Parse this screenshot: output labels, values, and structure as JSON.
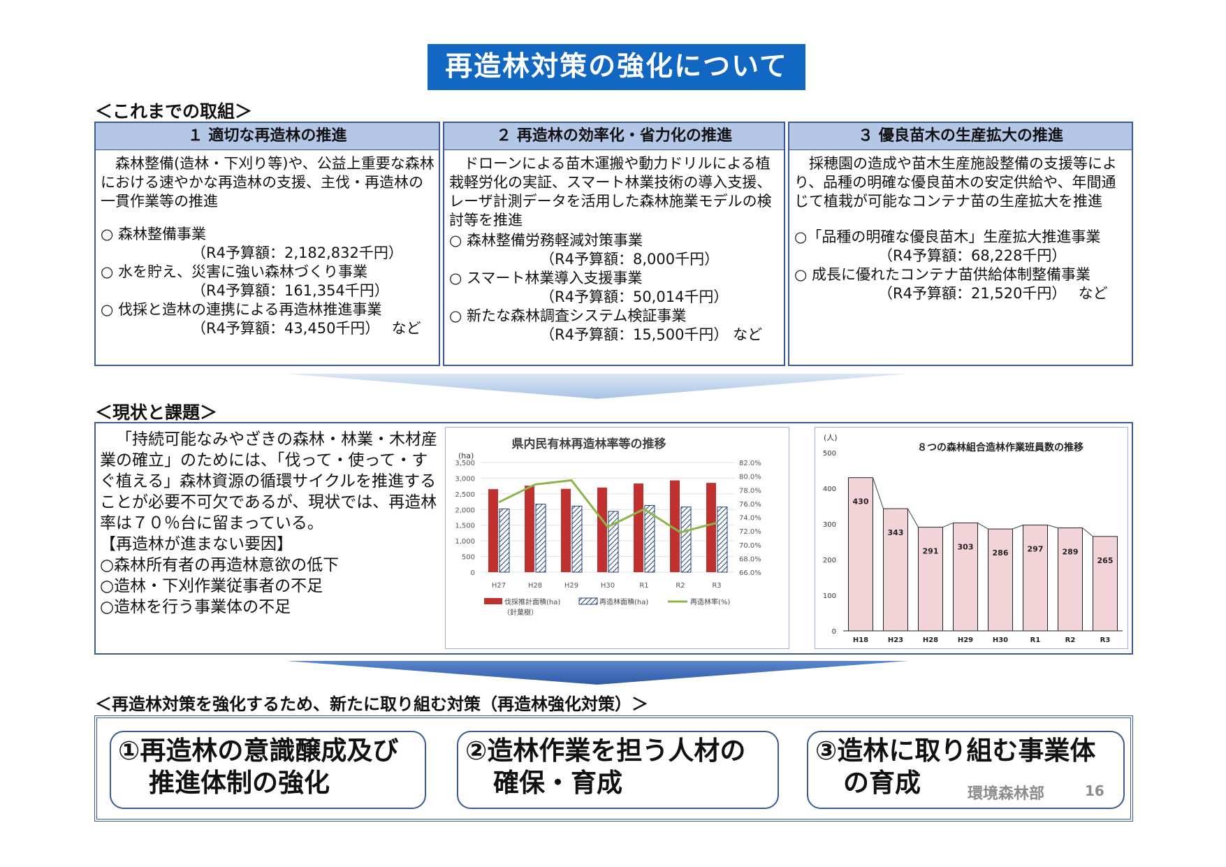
{
  "title": "再造林対策の強化について",
  "sections": {
    "past": "＜これまでの取組＞",
    "current": "＜現状と課題＞",
    "new": "＜再造林対策を強化するため、新たに取り組む対策（再造林強化対策）＞"
  },
  "panels": [
    {
      "heading": "１ 適切な再造林の推進",
      "intro": "森林整備(造林・下刈り等)や、公益上重要な森林における速やかな再造林の支援、主伐・再造林の一貫作業等の推進",
      "items": [
        {
          "name": "○ 森林整備事業",
          "budget": "（R4予算額：2,182,832千円）"
        },
        {
          "name": "○ 水を貯え、災害に強い森林づくり事業",
          "budget": "（R4予算額：161,354千円）"
        },
        {
          "name": "○ 伐採と造林の連携による再造林推進事業",
          "budget": "（R4予算額：43,450千円）　 など"
        }
      ]
    },
    {
      "heading": "２ 再造林の効率化・省力化の推進",
      "intro": "ドローンによる苗木運搬や動力ドリルによる植栽軽労化の実証、スマート林業技術の導入支援、レーザ計測データを活用した森林施業モデルの検討等を推進",
      "items": [
        {
          "name": "○ 森林整備労務軽減対策事業",
          "budget": "（R4予算額：8,000千円）"
        },
        {
          "name": "○ スマート林業導入支援事業",
          "budget": "（R4予算額：50,014千円）"
        },
        {
          "name": "○ 新たな森林調査システム検証事業",
          "budget": "（R4予算額：15,500千円） など"
        }
      ]
    },
    {
      "heading": "３ 優良苗木の生産拡大の推進",
      "intro": "採穂園の造成や苗木生産施設整備の支援等により、品種の明確な優良苗木の安定供給や、年間通じて植栽が可能なコンテナ苗の生産拡大を推進",
      "items": [
        {
          "name": "○「品種の明確な優良苗木」生産拡大推進事業",
          "budget": "（R4予算額：68,228千円）"
        },
        {
          "name": "○ 成長に優れたコンテナ苗供給体制整備事業",
          "budget": "（R4予算額：21,520千円）　 など"
        }
      ]
    }
  ],
  "issues": {
    "intro": "「持続可能なみやざきの森林・林業・木材産業の確立」のためには、「伐って・使って・すぐ植える」森林資源の循環サイクルを推進することが必要不可欠であるが、現状では、再造林率は７０％台に留まっている。",
    "factors_title": "【再造林が進まない要因】",
    "factors": [
      "○森林所有者の再造林意欲の低下",
      "○造林・下刈作業従事者の不足",
      "○造林を行う事業体の不足"
    ]
  },
  "chart_data": [
    {
      "type": "bar",
      "title": "県内民有林再造林率等の推移",
      "categories": [
        "H27",
        "H28",
        "H29",
        "H30",
        "R1",
        "R2",
        "R3"
      ],
      "ylabel": "(ha)",
      "ylim": [
        0,
        3500
      ],
      "y2lim": [
        66,
        82
      ],
      "yticks": [
        "0",
        "500",
        "1,000",
        "1,500",
        "2,000",
        "2,500",
        "3,000",
        "3,500"
      ],
      "y2ticks": [
        "66.0%",
        "68.0%",
        "70.0%",
        "72.0%",
        "74.0%",
        "76.0%",
        "78.0%",
        "80.0%",
        "82.0%"
      ],
      "series": [
        {
          "name": "伐採推計面積(ha)",
          "values": [
            2650,
            2760,
            2660,
            2700,
            2830,
            2930,
            2850
          ],
          "color": "#c0312f"
        },
        {
          "name": "再造林面積(ha)",
          "values": [
            2020,
            2170,
            2110,
            1940,
            2130,
            2080,
            2080
          ],
          "color": "#1f3e72"
        },
        {
          "name": "再造林率(%)",
          "values": [
            76.2,
            78.8,
            79.4,
            72.6,
            75.2,
            71.8,
            73.2
          ],
          "color": "#8bb54a",
          "axis": "y2"
        }
      ],
      "legend_note": "（針葉樹）",
      "legend": "bottom"
    },
    {
      "type": "bar",
      "title": "８つの森林組合造林作業班員数の推移",
      "categories": [
        "H18",
        "H23",
        "H28",
        "H29",
        "H30",
        "R1",
        "R2",
        "R3"
      ],
      "ylabel": "(人)",
      "ylim": [
        0,
        500
      ],
      "yticks": [
        "0",
        "100",
        "200",
        "300",
        "400",
        "500"
      ],
      "values": [
        430,
        343,
        291,
        303,
        286,
        297,
        289,
        265
      ],
      "color": "#f2d4d8"
    }
  ],
  "measures": [
    {
      "line1": "①再造林の意識醸成及び",
      "line2": "推進体制の強化"
    },
    {
      "line1": "②造林作業を担う人材の",
      "line2": "確保・育成"
    },
    {
      "line1": "③造林に取り組む事業体",
      "line2": "の育成"
    }
  ],
  "footer": {
    "dept": "環境森林部",
    "page": "16"
  }
}
